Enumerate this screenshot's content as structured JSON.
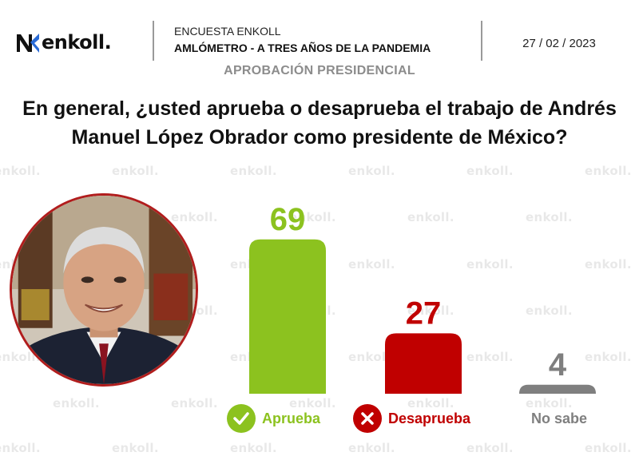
{
  "header": {
    "brand": "enkoll.",
    "survey_name": "ENCUESTA ENKOLL",
    "survey_topic": "AMLÓMETRO - A TRES AÑOS DE LA PANDEMIA",
    "date": "27 / 02 / 2023",
    "section": "APROBACIÓN PRESIDENCIAL"
  },
  "question": {
    "line1": "En general, ¿usted aprueba o desaprueba el trabajo de Andrés",
    "line2": "Manuel López Obrador como presidente de México?"
  },
  "watermark_text": "enkoll.",
  "colors": {
    "aprueba": "#8cc21f",
    "desaprueba": "#c00000",
    "no_sabe": "#7f7f7f",
    "portrait_border": "#b11d1d"
  },
  "legend": {
    "aprueba": {
      "label": "Aprueba",
      "icon": "check-icon"
    },
    "desaprueba": {
      "label": "Desaprueba",
      "icon": "x-icon"
    },
    "no_sabe": {
      "label": "No sabe"
    }
  },
  "chart_data": {
    "type": "bar",
    "title": "",
    "xlabel": "",
    "ylabel": "",
    "categories": [
      "Aprueba",
      "Desaprueba",
      "No sabe"
    ],
    "values": [
      69,
      27,
      4
    ],
    "ylim": [
      0,
      100
    ],
    "grid": false,
    "legend": "bottom"
  }
}
